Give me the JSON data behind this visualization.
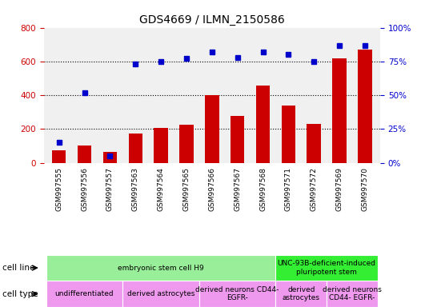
{
  "title": "GDS4669 / ILMN_2150586",
  "samples": [
    "GSM997555",
    "GSM997556",
    "GSM997557",
    "GSM997563",
    "GSM997564",
    "GSM997565",
    "GSM997566",
    "GSM997567",
    "GSM997568",
    "GSM997571",
    "GSM997572",
    "GSM997569",
    "GSM997570"
  ],
  "counts": [
    75,
    100,
    65,
    175,
    205,
    225,
    400,
    275,
    455,
    340,
    230,
    620,
    670
  ],
  "percentiles": [
    15,
    52,
    5,
    73,
    75,
    77,
    82,
    78,
    82,
    80,
    75,
    87,
    87
  ],
  "bar_color": "#cc0000",
  "dot_color": "#0000cc",
  "ylim_left": [
    0,
    800
  ],
  "yticks_left": [
    0,
    200,
    400,
    600,
    800
  ],
  "yticks_right": [
    0,
    25,
    50,
    75,
    100
  ],
  "cell_line_groups": [
    {
      "label": "embryonic stem cell H9",
      "start": 0,
      "end": 9,
      "color": "#99ee99"
    },
    {
      "label": "UNC-93B-deficient-induced\npluripotent stem",
      "start": 9,
      "end": 13,
      "color": "#33ee33"
    }
  ],
  "cell_type_groups": [
    {
      "label": "undifferentiated",
      "start": 0,
      "end": 3,
      "color": "#ee99ee"
    },
    {
      "label": "derived astrocytes",
      "start": 3,
      "end": 6,
      "color": "#ee99ee"
    },
    {
      "label": "derived neurons CD44-\nEGFR-",
      "start": 6,
      "end": 9,
      "color": "#ee99ee"
    },
    {
      "label": "derived\nastrocytes",
      "start": 9,
      "end": 11,
      "color": "#ee99ee"
    },
    {
      "label": "derived neurons\nCD44- EGFR-",
      "start": 11,
      "end": 13,
      "color": "#ee99ee"
    }
  ]
}
